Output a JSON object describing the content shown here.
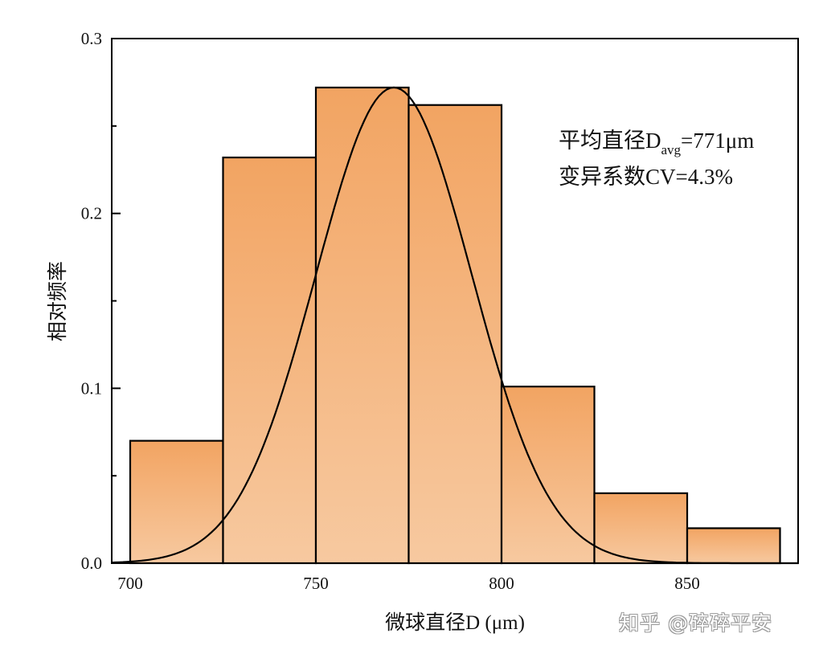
{
  "chart_data": {
    "type": "bar",
    "subtype": "histogram_with_normal_fit",
    "title": "",
    "xlabel": "微球直径D (μm)",
    "ylabel": "相对频率",
    "xlim": [
      695,
      880
    ],
    "ylim": [
      0,
      0.3
    ],
    "x_ticks": [
      700,
      750,
      800,
      850
    ],
    "y_ticks": [
      "0.0",
      "0.1",
      "0.2",
      "0.3"
    ],
    "grid": false,
    "bins": [
      {
        "start": 700,
        "end": 725,
        "value": 0.07
      },
      {
        "start": 725,
        "end": 750,
        "value": 0.232
      },
      {
        "start": 750,
        "end": 775,
        "value": 0.272
      },
      {
        "start": 775,
        "end": 800,
        "value": 0.262
      },
      {
        "start": 800,
        "end": 825,
        "value": 0.101
      },
      {
        "start": 825,
        "end": 850,
        "value": 0.04
      },
      {
        "start": 850,
        "end": 875,
        "value": 0.02
      }
    ],
    "categories": [
      "700-725",
      "725-750",
      "750-775",
      "775-800",
      "800-825",
      "825-850",
      "850-875"
    ],
    "values": [
      0.07,
      0.232,
      0.272,
      0.262,
      0.101,
      0.04,
      0.02
    ],
    "fit_curve": {
      "type": "normal",
      "mean": 771,
      "peak": 0.272,
      "sigma": 21
    },
    "annotations": {
      "line1_prefix": "平均直径D",
      "line1_sub": "avg",
      "line1_suffix": "=771μm",
      "line2": "变异系数CV=4.3%"
    },
    "colors": {
      "bar_top": "#f2a462",
      "bar_bottom": "#f7c9a0",
      "bar_edge": "#000000",
      "curve": "#000000"
    }
  },
  "watermark": "知乎 @碎碎平安"
}
